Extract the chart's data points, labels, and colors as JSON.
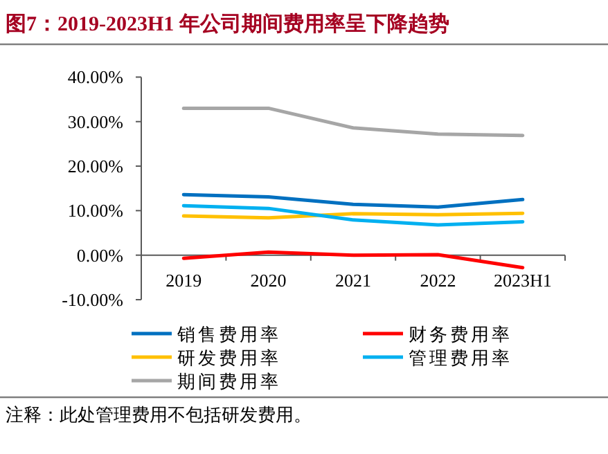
{
  "chart_data": {
    "type": "line",
    "title": "图7：2019-2023H1 年公司期间费用率呈下降趋势",
    "categories": [
      "2019",
      "2020",
      "2021",
      "2022",
      "2023H1"
    ],
    "series": [
      {
        "name": "销售费用率",
        "color": "#0070c0",
        "values": [
          13.6,
          13.1,
          11.4,
          10.8,
          12.5
        ]
      },
      {
        "name": "财务费用率",
        "color": "#ff0000",
        "values": [
          -0.7,
          0.7,
          0.0,
          0.1,
          -2.8
        ]
      },
      {
        "name": "研发费用率",
        "color": "#ffc000",
        "values": [
          8.8,
          8.4,
          9.3,
          9.1,
          9.4
        ]
      },
      {
        "name": "管理费用率",
        "color": "#00b0f0",
        "values": [
          11.1,
          10.5,
          7.9,
          6.8,
          7.5
        ]
      },
      {
        "name": "期间费用率",
        "color": "#a6a6a6",
        "values": [
          33.0,
          33.0,
          28.6,
          27.2,
          26.9
        ]
      }
    ],
    "ylim": [
      -10,
      40
    ],
    "yticks": [
      {
        "value": -10,
        "label": "-10.00%"
      },
      {
        "value": 0,
        "label": "0.00%"
      },
      {
        "value": 10,
        "label": "10.00%"
      },
      {
        "value": 20,
        "label": "20.00%"
      },
      {
        "value": 30,
        "label": "30.00%"
      },
      {
        "value": 40,
        "label": "40.00%"
      }
    ],
    "legend": "bottom",
    "annotations": [
      "注释：此处管理费用不包括研发费用。"
    ]
  }
}
